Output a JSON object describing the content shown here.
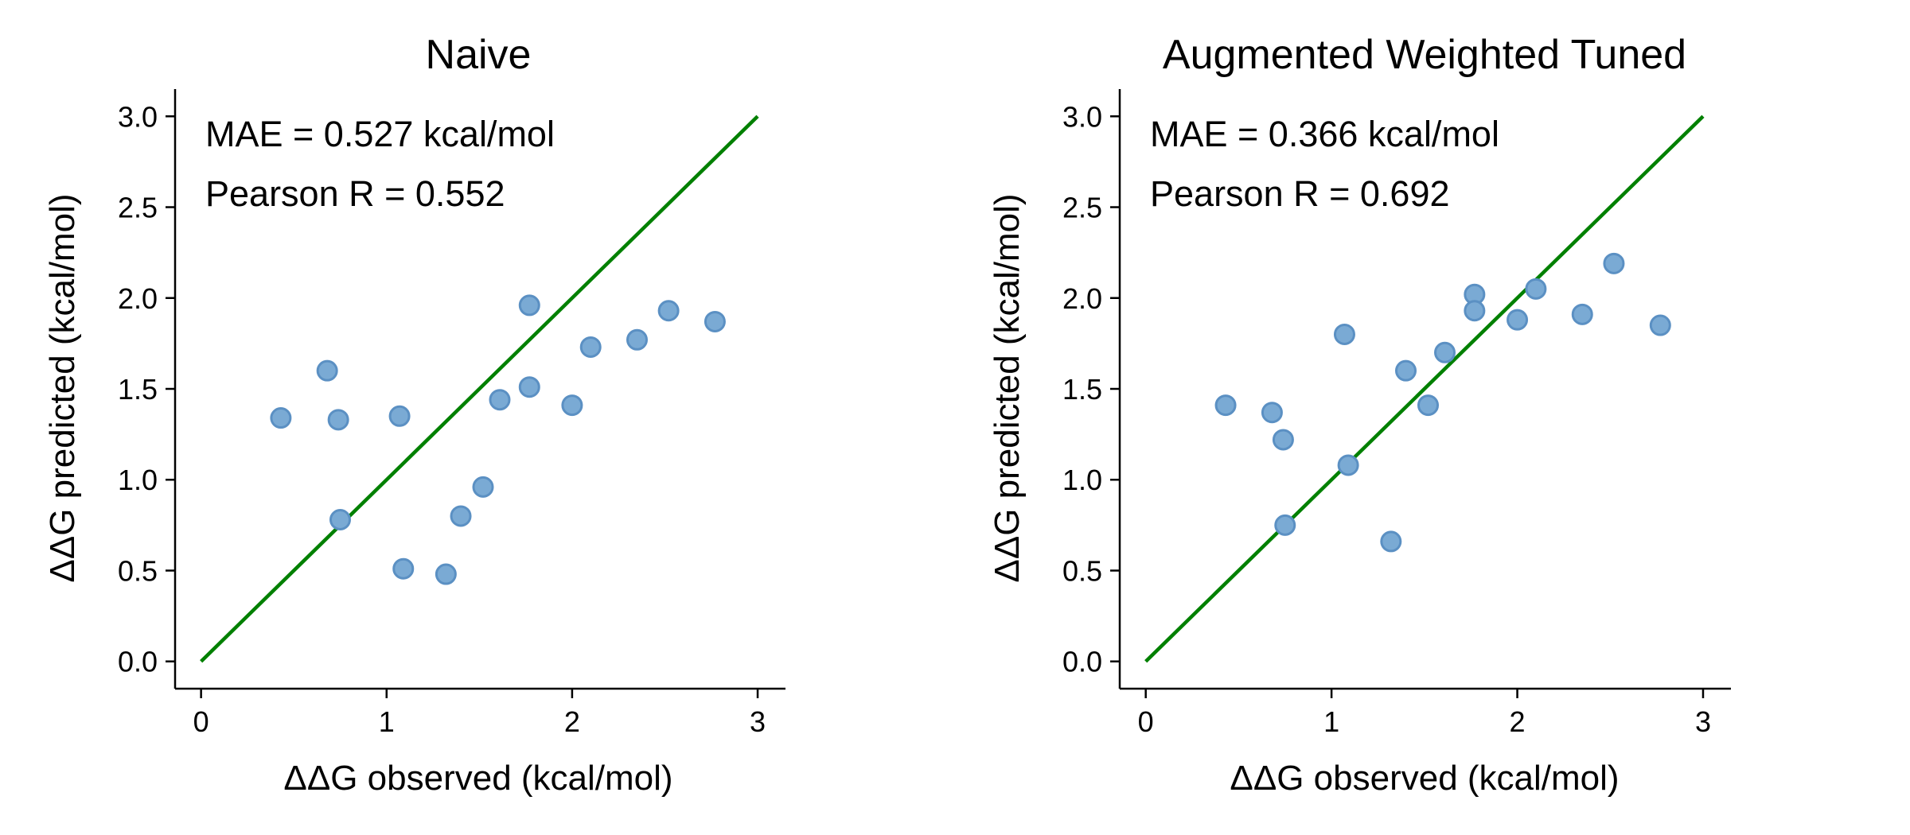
{
  "colors": {
    "marker_fill": "#7aaad4",
    "marker_edge": "#5b90c3",
    "reference_line": "#008000"
  },
  "chart_data": [
    {
      "type": "scatter",
      "title": "Naive",
      "xlabel": "ΔΔG observed (kcal/mol)",
      "ylabel": "ΔΔG predicted (kcal/mol)",
      "xlim": [
        -0.14,
        3.15
      ],
      "ylim": [
        -0.15,
        3.15
      ],
      "xticks": [
        0,
        1,
        2,
        3
      ],
      "yticks": [
        0.0,
        0.5,
        1.0,
        1.5,
        2.0,
        2.5,
        3.0
      ],
      "xtick_labels": [
        "0",
        "1",
        "2",
        "3"
      ],
      "ytick_labels": [
        "0.0",
        "0.5",
        "1.0",
        "1.5",
        "2.0",
        "2.5",
        "3.0"
      ],
      "grid": false,
      "reference_line": {
        "x": [
          0,
          3
        ],
        "y": [
          0,
          3
        ]
      },
      "annotations": [
        "MAE = 0.527 kcal/mol",
        "Pearson R = 0.552"
      ],
      "points": [
        {
          "x": 0.43,
          "y": 1.34
        },
        {
          "x": 0.68,
          "y": 1.6
        },
        {
          "x": 0.74,
          "y": 1.33
        },
        {
          "x": 0.75,
          "y": 0.78
        },
        {
          "x": 1.07,
          "y": 1.35
        },
        {
          "x": 1.09,
          "y": 0.51
        },
        {
          "x": 1.32,
          "y": 0.48
        },
        {
          "x": 1.4,
          "y": 0.8
        },
        {
          "x": 1.52,
          "y": 0.96
        },
        {
          "x": 1.61,
          "y": 1.44
        },
        {
          "x": 1.77,
          "y": 1.96
        },
        {
          "x": 1.77,
          "y": 1.51
        },
        {
          "x": 2.0,
          "y": 1.41
        },
        {
          "x": 2.1,
          "y": 1.73
        },
        {
          "x": 2.35,
          "y": 1.77
        },
        {
          "x": 2.52,
          "y": 1.93
        },
        {
          "x": 2.77,
          "y": 1.87
        }
      ]
    },
    {
      "type": "scatter",
      "title": "Augmented Weighted Tuned",
      "xlabel": "ΔΔG observed (kcal/mol)",
      "ylabel": "ΔΔG predicted (kcal/mol)",
      "xlim": [
        -0.14,
        3.15
      ],
      "ylim": [
        -0.15,
        3.15
      ],
      "xticks": [
        0,
        1,
        2,
        3
      ],
      "yticks": [
        0.0,
        0.5,
        1.0,
        1.5,
        2.0,
        2.5,
        3.0
      ],
      "xtick_labels": [
        "0",
        "1",
        "2",
        "3"
      ],
      "ytick_labels": [
        "0.0",
        "0.5",
        "1.0",
        "1.5",
        "2.0",
        "2.5",
        "3.0"
      ],
      "grid": false,
      "reference_line": {
        "x": [
          0,
          3
        ],
        "y": [
          0,
          3
        ]
      },
      "annotations": [
        "MAE = 0.366 kcal/mol",
        "Pearson R = 0.692"
      ],
      "points": [
        {
          "x": 0.43,
          "y": 1.41
        },
        {
          "x": 0.68,
          "y": 1.37
        },
        {
          "x": 0.74,
          "y": 1.22
        },
        {
          "x": 0.75,
          "y": 0.75
        },
        {
          "x": 1.07,
          "y": 1.8
        },
        {
          "x": 1.09,
          "y": 1.08
        },
        {
          "x": 1.32,
          "y": 0.66
        },
        {
          "x": 1.4,
          "y": 1.6
        },
        {
          "x": 1.52,
          "y": 1.41
        },
        {
          "x": 1.61,
          "y": 1.7
        },
        {
          "x": 1.77,
          "y": 2.02
        },
        {
          "x": 1.77,
          "y": 1.93
        },
        {
          "x": 2.0,
          "y": 1.88
        },
        {
          "x": 2.1,
          "y": 2.05
        },
        {
          "x": 2.35,
          "y": 1.91
        },
        {
          "x": 2.52,
          "y": 2.19
        },
        {
          "x": 2.77,
          "y": 1.85
        }
      ]
    }
  ]
}
